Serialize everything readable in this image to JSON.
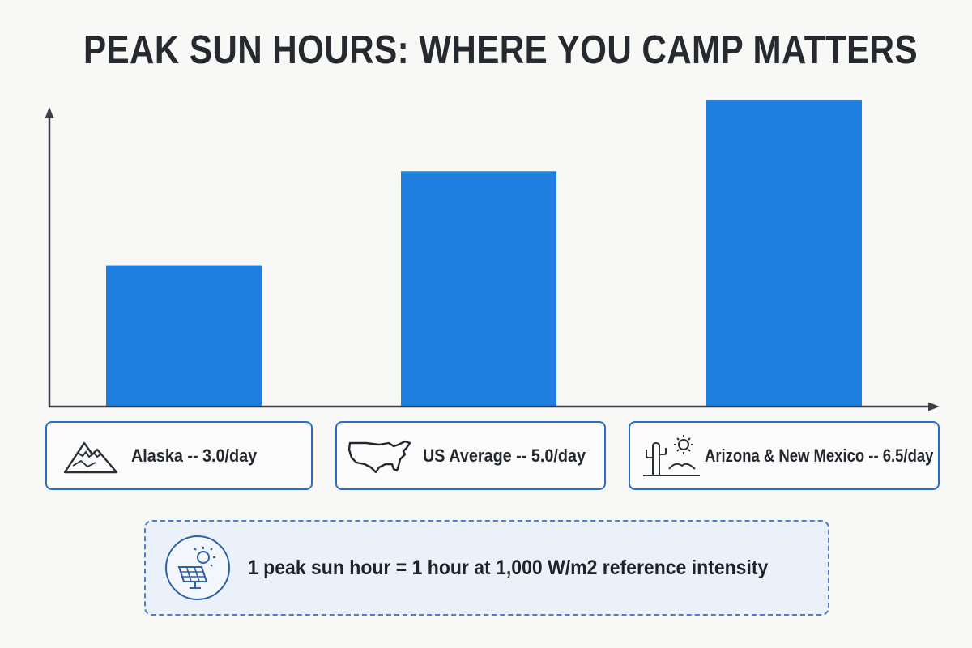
{
  "title": "PEAK SUN HOURS: WHERE YOU CAMP MATTERS",
  "colors": {
    "bar": "#1e7fe0",
    "axis": "#3b3f45",
    "box_border": "#2b6cc4",
    "note_border": "#4a7fc9",
    "note_bg": "#eaf1fb"
  },
  "chart_data": {
    "type": "bar",
    "categories": [
      "Alaska",
      "US Average",
      "Arizona & New Mexico"
    ],
    "values": [
      3.0,
      5.0,
      6.5
    ],
    "title": "PEAK SUN HOURS: WHERE YOU CAMP MATTERS",
    "xlabel": "",
    "ylabel": "",
    "ylim": [
      0,
      7
    ],
    "grid": false
  },
  "labels": [
    {
      "text": "Alaska -- 3.0/day",
      "icon": "mountain-icon"
    },
    {
      "text": "US Average -- 5.0/day",
      "icon": "usa-map-icon"
    },
    {
      "text": "Arizona & New Mexico -- 6.5/day",
      "icon": "desert-cactus-sun-icon"
    }
  ],
  "note": {
    "text": "1 peak sun hour = 1 hour at 1,000 W/m2 reference intensity",
    "icon": "solar-panel-sun-icon"
  }
}
